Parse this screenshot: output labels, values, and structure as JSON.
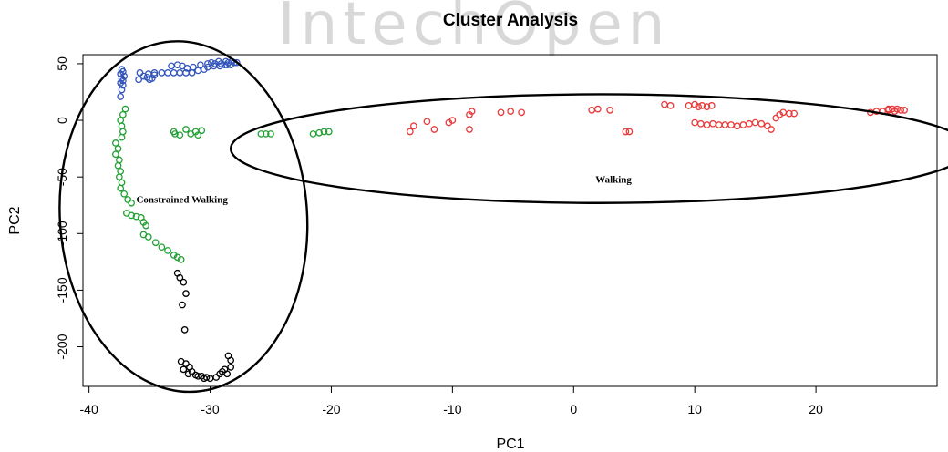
{
  "chart_data": {
    "type": "scatter",
    "title": "Cluster Analysis",
    "xlabel": "PC1",
    "ylabel": "PC2",
    "xlim": [
      -40.5,
      30
    ],
    "ylim": [
      -235,
      58
    ],
    "xticks": [
      -40,
      -30,
      -20,
      -10,
      0,
      10,
      20
    ],
    "yticks": [
      50,
      0,
      -50,
      -100,
      -150,
      -200
    ],
    "grid": false,
    "marker": "open-circle",
    "series": [
      {
        "color": "#3355bb",
        "points": [
          [
            -37.3,
            45
          ],
          [
            -37.2,
            43
          ],
          [
            -37.4,
            41
          ],
          [
            -37.1,
            39
          ],
          [
            -37.3,
            37
          ],
          [
            -37.2,
            35
          ],
          [
            -37.4,
            33
          ],
          [
            -37.2,
            31
          ],
          [
            -37.3,
            27
          ],
          [
            -37.4,
            21
          ],
          [
            -35.5,
            39
          ],
          [
            -35.2,
            38
          ],
          [
            -34.8,
            37
          ],
          [
            -35.9,
            36
          ],
          [
            -35.0,
            36
          ],
          [
            -34.6,
            40
          ],
          [
            -35.8,
            42
          ],
          [
            -35.1,
            41
          ],
          [
            -34.6,
            42
          ],
          [
            -34.0,
            42
          ],
          [
            -33.5,
            42
          ],
          [
            -33.0,
            42
          ],
          [
            -32.5,
            42
          ],
          [
            -32.0,
            42
          ],
          [
            -31.5,
            42
          ],
          [
            -31.0,
            44
          ],
          [
            -30.5,
            45
          ],
          [
            -30.2,
            47
          ],
          [
            -29.7,
            48
          ],
          [
            -29.2,
            48
          ],
          [
            -28.8,
            49
          ],
          [
            -28.3,
            49
          ],
          [
            -29.9,
            51
          ],
          [
            -29.3,
            52
          ],
          [
            -28.7,
            52
          ],
          [
            -28.2,
            52
          ],
          [
            -27.8,
            51
          ],
          [
            -28.6,
            49
          ],
          [
            -31.9,
            46
          ],
          [
            -32.3,
            48
          ],
          [
            -32.7,
            49
          ],
          [
            -33.2,
            48
          ],
          [
            -31.4,
            47
          ],
          [
            -30.8,
            49
          ],
          [
            -30.2,
            50
          ],
          [
            -29.6,
            50
          ],
          [
            -29.1,
            50
          ],
          [
            -28.5,
            51
          ],
          [
            -28.0,
            51
          ]
        ]
      },
      {
        "color": "#22a033",
        "points": [
          [
            -37.0,
            10
          ],
          [
            -37.2,
            5
          ],
          [
            -37.4,
            0
          ],
          [
            -37.3,
            -5
          ],
          [
            -37.2,
            -10
          ],
          [
            -37.3,
            -15
          ],
          [
            -37.8,
            -20
          ],
          [
            -37.6,
            -25
          ],
          [
            -37.8,
            -30
          ],
          [
            -37.5,
            -35
          ],
          [
            -37.6,
            -40
          ],
          [
            -37.4,
            -45
          ],
          [
            -37.5,
            -50
          ],
          [
            -37.3,
            -55
          ],
          [
            -37.4,
            -60
          ],
          [
            -37.1,
            -65
          ],
          [
            -36.8,
            -70
          ],
          [
            -36.5,
            -73
          ],
          [
            -36.9,
            -82
          ],
          [
            -36.5,
            -84
          ],
          [
            -36.1,
            -85
          ],
          [
            -35.7,
            -86
          ],
          [
            -35.5,
            -90
          ],
          [
            -35.3,
            -93
          ],
          [
            -35.5,
            -101
          ],
          [
            -35.1,
            -103
          ],
          [
            -34.5,
            -108
          ],
          [
            -34.0,
            -112
          ],
          [
            -33.5,
            -115
          ],
          [
            -33.0,
            -119
          ],
          [
            -32.7,
            -121
          ],
          [
            -32.4,
            -123
          ],
          [
            -33.0,
            -10
          ],
          [
            -32.5,
            -13
          ],
          [
            -32.0,
            -8
          ],
          [
            -31.6,
            -12
          ],
          [
            -31.2,
            -10
          ],
          [
            -30.7,
            -9
          ],
          [
            -31.0,
            -13
          ],
          [
            -32.9,
            -12
          ],
          [
            -25.8,
            -12
          ],
          [
            -25.4,
            -12
          ],
          [
            -25.0,
            -12
          ],
          [
            -21.5,
            -12
          ],
          [
            -21.0,
            -11
          ],
          [
            -20.6,
            -10
          ],
          [
            -20.2,
            -10
          ]
        ]
      },
      {
        "color": "#e83a3a",
        "points": [
          [
            -13.5,
            -10
          ],
          [
            -13.2,
            -5
          ],
          [
            -12.1,
            -1
          ],
          [
            -11.5,
            -8
          ],
          [
            -10.3,
            -2
          ],
          [
            -10.0,
            0
          ],
          [
            -8.6,
            -8
          ],
          [
            -8.6,
            5
          ],
          [
            -8.4,
            8
          ],
          [
            -6.0,
            7
          ],
          [
            -5.2,
            8
          ],
          [
            -4.3,
            7
          ],
          [
            1.5,
            9
          ],
          [
            2.0,
            10
          ],
          [
            3.0,
            9
          ],
          [
            4.3,
            -10
          ],
          [
            4.6,
            -10
          ],
          [
            7.5,
            14
          ],
          [
            8.0,
            13
          ],
          [
            9.5,
            13
          ],
          [
            10.0,
            14
          ],
          [
            10.3,
            12
          ],
          [
            10.6,
            13
          ],
          [
            11.0,
            12
          ],
          [
            11.4,
            13
          ],
          [
            10.0,
            -2
          ],
          [
            10.5,
            -3
          ],
          [
            11.0,
            -4
          ],
          [
            11.5,
            -3
          ],
          [
            12.0,
            -4
          ],
          [
            12.5,
            -4
          ],
          [
            13.0,
            -4
          ],
          [
            13.5,
            -5
          ],
          [
            14.0,
            -4
          ],
          [
            14.5,
            -3
          ],
          [
            15.0,
            -2
          ],
          [
            15.5,
            -3
          ],
          [
            16.0,
            -5
          ],
          [
            16.3,
            -8
          ],
          [
            16.7,
            2
          ],
          [
            17.0,
            5
          ],
          [
            17.3,
            7
          ],
          [
            17.8,
            6
          ],
          [
            18.2,
            6
          ],
          [
            24.5,
            7
          ],
          [
            25.0,
            8
          ],
          [
            25.5,
            8
          ],
          [
            26.0,
            9
          ],
          [
            26.3,
            10
          ],
          [
            26.7,
            10
          ],
          [
            27.0,
            9
          ],
          [
            27.3,
            9
          ],
          [
            26.5,
            8
          ],
          [
            26.0,
            10
          ]
        ]
      },
      {
        "color": "#000000",
        "points": [
          [
            -32.7,
            -135
          ],
          [
            -32.5,
            -139
          ],
          [
            -32.2,
            -143
          ],
          [
            -32.0,
            -153
          ],
          [
            -32.3,
            -163
          ],
          [
            -32.1,
            -185
          ],
          [
            -32.4,
            -213
          ],
          [
            -32.0,
            -215
          ],
          [
            -31.7,
            -218
          ],
          [
            -32.2,
            -220
          ],
          [
            -31.5,
            -222
          ],
          [
            -31.8,
            -224
          ],
          [
            -31.2,
            -225
          ],
          [
            -30.7,
            -226
          ],
          [
            -30.3,
            -227
          ],
          [
            -30.0,
            -228
          ],
          [
            -29.5,
            -227
          ],
          [
            -29.2,
            -224
          ],
          [
            -28.8,
            -220
          ],
          [
            -28.6,
            -224
          ],
          [
            -28.3,
            -218
          ],
          [
            -28.3,
            -212
          ],
          [
            -28.5,
            -208
          ],
          [
            -29.0,
            -222
          ],
          [
            -30.5,
            -228
          ],
          [
            -31.0,
            -226
          ]
        ]
      }
    ],
    "annotations": [
      {
        "text": "Constrained Walking",
        "x": -36.1,
        "y": -73
      },
      {
        "text": "Walking",
        "x": 1.8,
        "y": -55
      }
    ],
    "ellipses": [
      {
        "cx": -32.2,
        "cy": -85,
        "rx": 10.2,
        "ry": 155,
        "rotate": -4
      },
      {
        "cx": 2.2,
        "cy": -25,
        "rx": 30.5,
        "ry": 48,
        "rotate": 0
      }
    ]
  },
  "watermark": "IntechOpen"
}
